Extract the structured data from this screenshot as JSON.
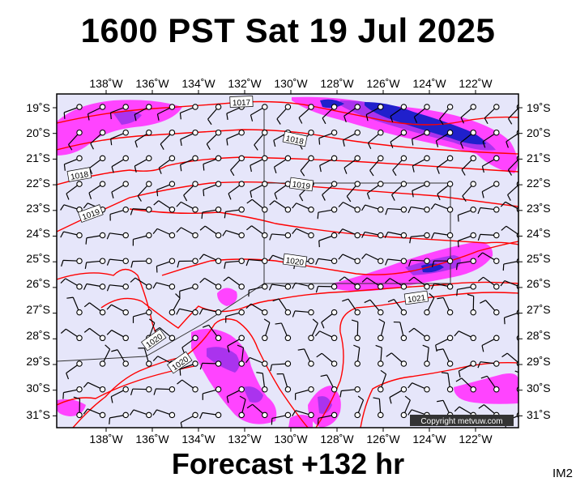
{
  "title": "1600 PST Sat 19 Jul 2025",
  "footer": "Forecast +132 hr",
  "panel_tag": "IM2",
  "copyright": "Copyright metvuw.com",
  "colors": {
    "background": "#e6e6fa",
    "isobar": "#ff0000",
    "rain_light": "#ff44ff",
    "rain_heavy": "#0000cc",
    "wind": "#000000"
  },
  "map": {
    "lon_labels_top": [
      "138˚W",
      "136˚W",
      "134˚W",
      "132˚W",
      "130˚W",
      "128˚W",
      "126˚W",
      "124˚W",
      "122˚W"
    ],
    "lon_labels_bottom": [
      "138˚W",
      "136˚W",
      "134˚W",
      "132˚W",
      "130˚W",
      "128˚W",
      "126˚W",
      "124˚W",
      "122˚W"
    ],
    "lat_labels_left": [
      "19˚S",
      "20˚S",
      "21˚S",
      "22˚S",
      "23˚S",
      "24˚S",
      "25˚S",
      "26˚S",
      "27˚S",
      "28˚S",
      "29˚S",
      "30˚S",
      "31˚S"
    ],
    "lat_labels_right": [
      "19˚S",
      "20˚S",
      "21˚S",
      "22˚S",
      "23˚S",
      "24˚S",
      "25˚S",
      "26˚S",
      "27˚S",
      "28˚S",
      "29˚S",
      "30˚S",
      "31˚S"
    ],
    "isobar_labels": [
      "1017",
      "1018",
      "1018",
      "1019",
      "1019",
      "1020",
      "1020",
      "1020",
      "1021"
    ]
  }
}
